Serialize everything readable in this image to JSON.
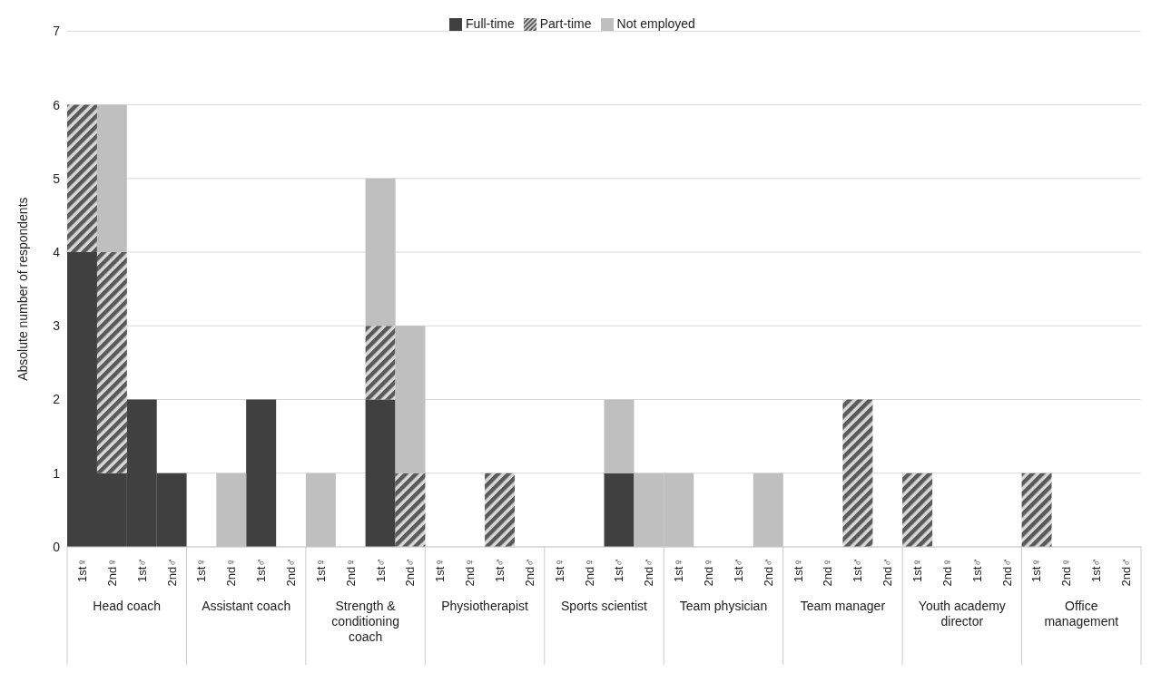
{
  "chart_data": {
    "type": "bar",
    "stacked": true,
    "ylabel": "Absolute number of respondents",
    "categories": [
      "1st♀",
      "2nd♀",
      "1st♂",
      "2nd♂",
      "1st♀",
      "2nd♀",
      "1st♂",
      "2nd♂",
      "1st♀",
      "2nd♀",
      "1st♂",
      "2nd♂",
      "1st♀",
      "2nd♀",
      "1st♂",
      "2nd♂",
      "1st♀",
      "2nd♀",
      "1st♂",
      "2nd♂",
      "1st♀",
      "2nd♀",
      "1st♂",
      "2nd♂",
      "1st♀",
      "2nd♀",
      "1st♂",
      "2nd♂",
      "1st♀",
      "2nd♀",
      "1st♂",
      "2nd♂",
      "1st♀",
      "2nd♀",
      "1st♂",
      "2nd♂"
    ],
    "series": [
      {
        "name": "Full-time",
        "color": "#404040",
        "values": [
          4,
          1,
          2,
          1,
          0,
          0,
          2,
          0,
          0,
          0,
          2,
          0,
          0,
          0,
          0,
          0,
          0,
          0,
          1,
          0,
          0,
          0,
          0,
          0,
          0,
          0,
          0,
          0,
          0,
          0,
          0,
          0,
          0,
          0,
          0,
          0
        ]
      },
      {
        "name": "Part-time",
        "color": "#595959",
        "values": [
          2,
          3,
          0,
          0,
          0,
          0,
          0,
          0,
          0,
          0,
          1,
          1,
          0,
          0,
          1,
          0,
          0,
          0,
          0,
          0,
          0,
          0,
          0,
          0,
          0,
          0,
          2,
          0,
          1,
          0,
          0,
          0,
          1,
          0,
          0,
          0
        ]
      },
      {
        "name": "Not employed",
        "color": "#bfbfbf",
        "values": [
          0,
          2,
          0,
          0,
          0,
          1,
          0,
          0,
          1,
          0,
          2,
          2,
          0,
          0,
          0,
          0,
          0,
          0,
          1,
          1,
          1,
          0,
          0,
          1,
          0,
          0,
          0,
          0,
          0,
          0,
          0,
          0,
          0,
          0,
          0,
          0
        ]
      }
    ],
    "annotations": [
      "Head coach",
      "Assistant coach",
      "Strength & conditioning coach",
      "Physiotherapist",
      "Sports scientist",
      "Team physician",
      "Team manager",
      "Youth academy director",
      "Office management"
    ],
    "ylim": [
      0,
      7
    ],
    "yticks": [
      0,
      1,
      2,
      3,
      4,
      5,
      6,
      7
    ],
    "grid": "y",
    "legend": "top"
  }
}
